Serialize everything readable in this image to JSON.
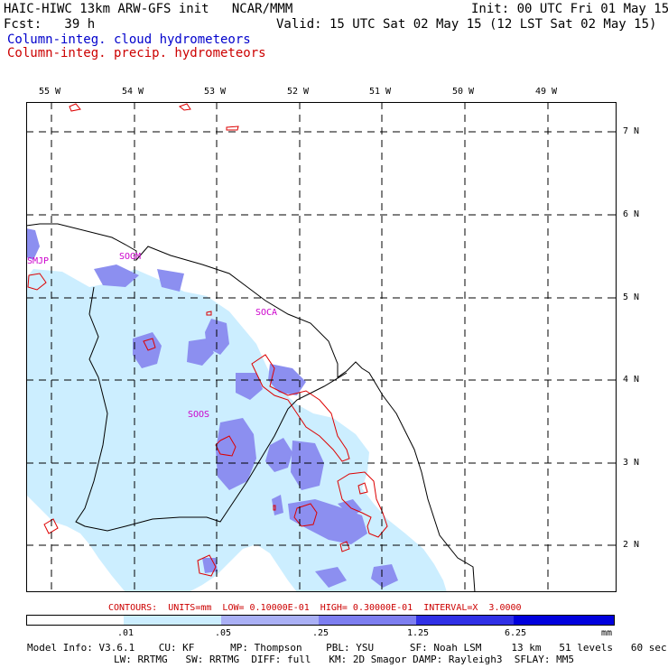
{
  "header": {
    "title_left": "HAIC-HIWC 13km ARW-GFS init   NCAR/MMM",
    "fcst": "Fcst:   39 h",
    "init": "Init: 00 UTC Fri 01 May 15",
    "valid": "Valid: 15 UTC Sat 02 May 15 (12 LST Sat 02 May 15)",
    "field1": "Column-integ. cloud hydrometeors",
    "field2": "Column-integ. precip. hydrometeors"
  },
  "colors": {
    "cloud_level1": "#cceeff",
    "cloud_level2": "#aab0f5",
    "cloud_level3": "#7d7ef0",
    "cloud_level4": "#3030e6",
    "cloud_level5": "#0000dd",
    "precip_contour": "#dd0000",
    "station": "#cc00cc",
    "grid": "#000000"
  },
  "map": {
    "lon_labels": [
      "55 W",
      "54 W",
      "53 W",
      "52 W",
      "51 W",
      "50 W",
      "49 W"
    ],
    "lat_labels": [
      "7 N",
      "6 N",
      "5 N",
      "4 N",
      "3 N",
      "2 N"
    ],
    "stations": [
      "SMJP",
      "SOGM",
      "SOCA",
      "SOOS"
    ]
  },
  "contour_info": "CONTOURS:  UNITS=mm  LOW= 0.10000E-01  HIGH= 0.30000E-01  INTERVAL=X  3.0000",
  "colorbar": {
    "tick_labels": [
      ".01",
      ".05",
      ".25",
      "1.25",
      "6.25"
    ],
    "units": "mm"
  },
  "model_info": {
    "line1": "Model Info: V3.6.1    CU: KF      MP: Thompson    PBL: YSU      SF: Noah LSM     13 km   51 levels   60 sec",
    "line2": "LW: RRTMG   SW: RRTMG  DIFF: full   KM: 2D Smagor DAMP: Rayleigh3  SFLAY: MM5"
  }
}
